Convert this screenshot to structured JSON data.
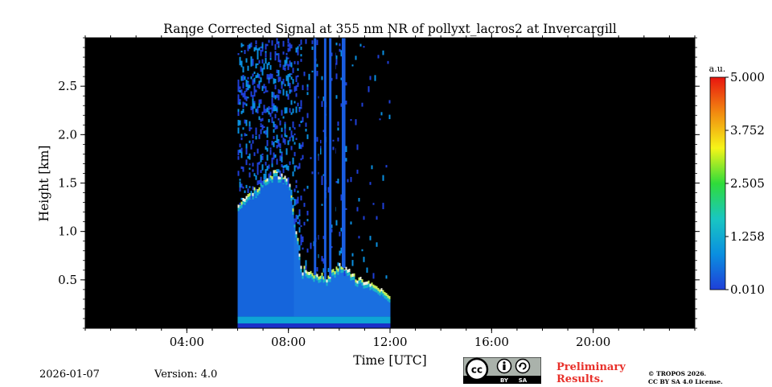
{
  "chart_data": {
    "type": "heatmap",
    "title": "Range Corrected Signal at 355 nm NR of pollyxt_lacros2 at Invercargill",
    "xlabel": "Time [UTC]",
    "ylabel": "Height [km]",
    "xlim_hours": [
      0,
      24
    ],
    "ylim_km": [
      0,
      3.0
    ],
    "x_ticks": [
      {
        "value": 4,
        "label": "04:00"
      },
      {
        "value": 8,
        "label": "08:00"
      },
      {
        "value": 12,
        "label": "12:00"
      },
      {
        "value": 16,
        "label": "16:00"
      },
      {
        "value": 20,
        "label": "20:00"
      }
    ],
    "y_ticks": [
      {
        "value": 0.5,
        "label": "0.5"
      },
      {
        "value": 1.0,
        "label": "1.0"
      },
      {
        "value": 1.5,
        "label": "1.5"
      },
      {
        "value": 2.0,
        "label": "2.0"
      },
      {
        "value": 2.5,
        "label": "2.5"
      }
    ],
    "data_coverage_hours": [
      6.0,
      12.0
    ],
    "no_data_color": "#000000",
    "colorbar": {
      "label": "a.u.",
      "range": [
        0.01,
        5.0
      ],
      "ticks": [
        {
          "value": 0.01,
          "label": "0.010"
        },
        {
          "value": 1.258,
          "label": "1.258"
        },
        {
          "value": 2.505,
          "label": "2.505"
        },
        {
          "value": 3.752,
          "label": "3.752"
        },
        {
          "value": 5.0,
          "label": "5.000"
        }
      ],
      "colors": [
        "#1f3fd8",
        "#0a8fe0",
        "#19c6c2",
        "#2fdc3a",
        "#f6f518",
        "#f28a10",
        "#e8150f"
      ]
    },
    "aerosol_layer_top_km": [
      {
        "t": 6.0,
        "h": 1.3
      },
      {
        "t": 6.5,
        "h": 1.35
      },
      {
        "t": 7.0,
        "h": 1.55
      },
      {
        "t": 7.5,
        "h": 1.6
      },
      {
        "t": 8.0,
        "h": 1.5
      },
      {
        "t": 8.5,
        "h": 0.6
      },
      {
        "t": 9.0,
        "h": 0.55
      },
      {
        "t": 9.5,
        "h": 0.5
      },
      {
        "t": 10.0,
        "h": 0.65
      },
      {
        "t": 10.5,
        "h": 0.55
      },
      {
        "t": 11.0,
        "h": 0.45
      },
      {
        "t": 11.5,
        "h": 0.4
      },
      {
        "t": 12.0,
        "h": 0.35
      }
    ],
    "cloud_columns_hours": [
      9.0,
      9.4,
      9.6,
      10.1,
      10.15
    ]
  },
  "footer": {
    "date": "2026-01-07",
    "version": "Version: 4.0",
    "license_badge": {
      "cc": "cc",
      "by": "BY",
      "sa": "SA"
    },
    "preliminary_line1": "Preliminary",
    "preliminary_line2": "Results.",
    "copyright_line1": "© TROPOS 2026.",
    "copyright_line2": "CC BY SA 4.0 License."
  }
}
